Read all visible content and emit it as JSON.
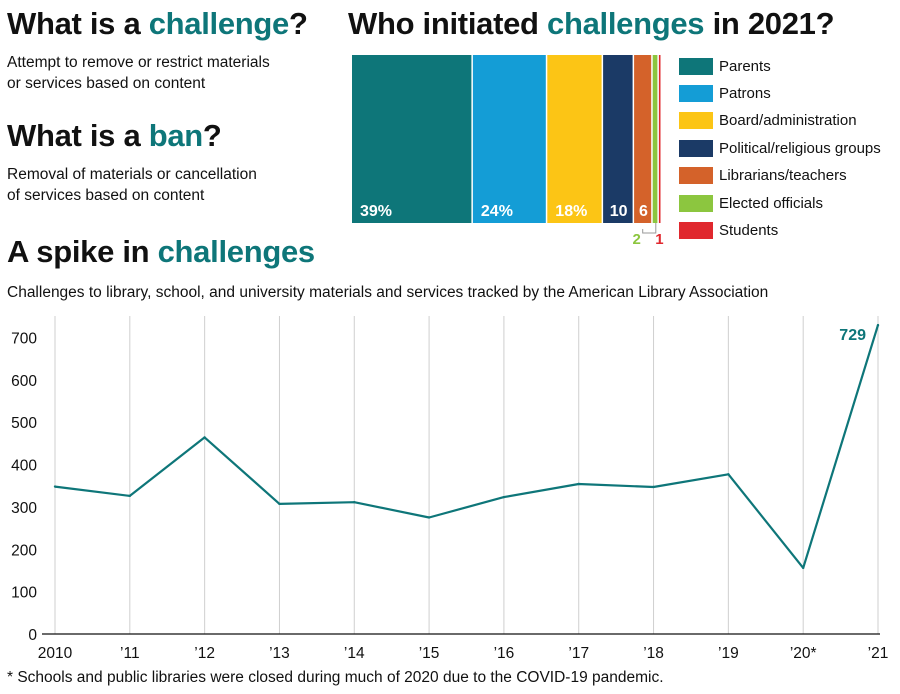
{
  "challenge": {
    "heading_pre": "What is a ",
    "heading_accent": "challenge",
    "heading_post": "?",
    "definition_line1": "Attempt to remove or restrict materials",
    "definition_line2": "or services based on content"
  },
  "ban": {
    "heading_pre": "What is a ",
    "heading_accent": "ban",
    "heading_post": "?",
    "definition_line1": "Removal of materials or cancellation",
    "definition_line2": "of services based on content"
  },
  "initiators": {
    "heading_pre": "Who initiated ",
    "heading_accent": "challenges",
    "heading_post": " in 2021?"
  },
  "spike": {
    "heading_pre": "A spike in ",
    "heading_accent": "challenges",
    "subtitle": "Challenges to library, school, and university materials and services tracked by the American Library Association"
  },
  "footnote": "* Schools and public libraries were closed during much of 2020 due to the COVID-19 pandemic.",
  "colors": {
    "accent": "#0e7679",
    "parents": "#0e7679",
    "patrons": "#149dd6",
    "board": "#fcc515",
    "political": "#1b3a66",
    "librarians": "#d4622a",
    "elected": "#8cc63f",
    "students": "#e0282e"
  },
  "chart_data": [
    {
      "type": "bar",
      "orientation": "stacked-horizontal",
      "title": "Who initiated challenges in 2021?",
      "unit": "percent",
      "series": [
        {
          "name": "Parents",
          "value": 39,
          "label": "39%",
          "color": "#0e7679"
        },
        {
          "name": "Patrons",
          "value": 24,
          "label": "24%",
          "color": "#149dd6"
        },
        {
          "name": "Board/administration",
          "value": 18,
          "label": "18%",
          "color": "#fcc515"
        },
        {
          "name": "Political/religious groups",
          "value": 10,
          "label": "10",
          "color": "#1b3a66"
        },
        {
          "name": "Librarians/teachers",
          "value": 6,
          "label": "6",
          "color": "#d4622a"
        },
        {
          "name": "Elected officials",
          "value": 2,
          "label": "2",
          "color": "#8cc63f"
        },
        {
          "name": "Students",
          "value": 1,
          "label": "1",
          "color": "#e0282e"
        }
      ],
      "legend": "right"
    },
    {
      "type": "line",
      "title": "A spike in challenges",
      "subtitle": "Challenges to library, school, and university materials and services tracked by the American Library Association",
      "categories": [
        "2010",
        "’11",
        "’12",
        "’13",
        "’14",
        "’15",
        "’16",
        "’17",
        "’18",
        "’19",
        "’20*",
        "’21"
      ],
      "values": [
        348,
        326,
        464,
        307,
        311,
        275,
        323,
        354,
        347,
        377,
        156,
        729
      ],
      "yticks": [
        0,
        100,
        200,
        300,
        400,
        500,
        600,
        700
      ],
      "ylim": [
        0,
        740
      ],
      "annotation": {
        "index": 11,
        "label": "729"
      },
      "color": "#0e7679",
      "grid": "vertical"
    }
  ]
}
